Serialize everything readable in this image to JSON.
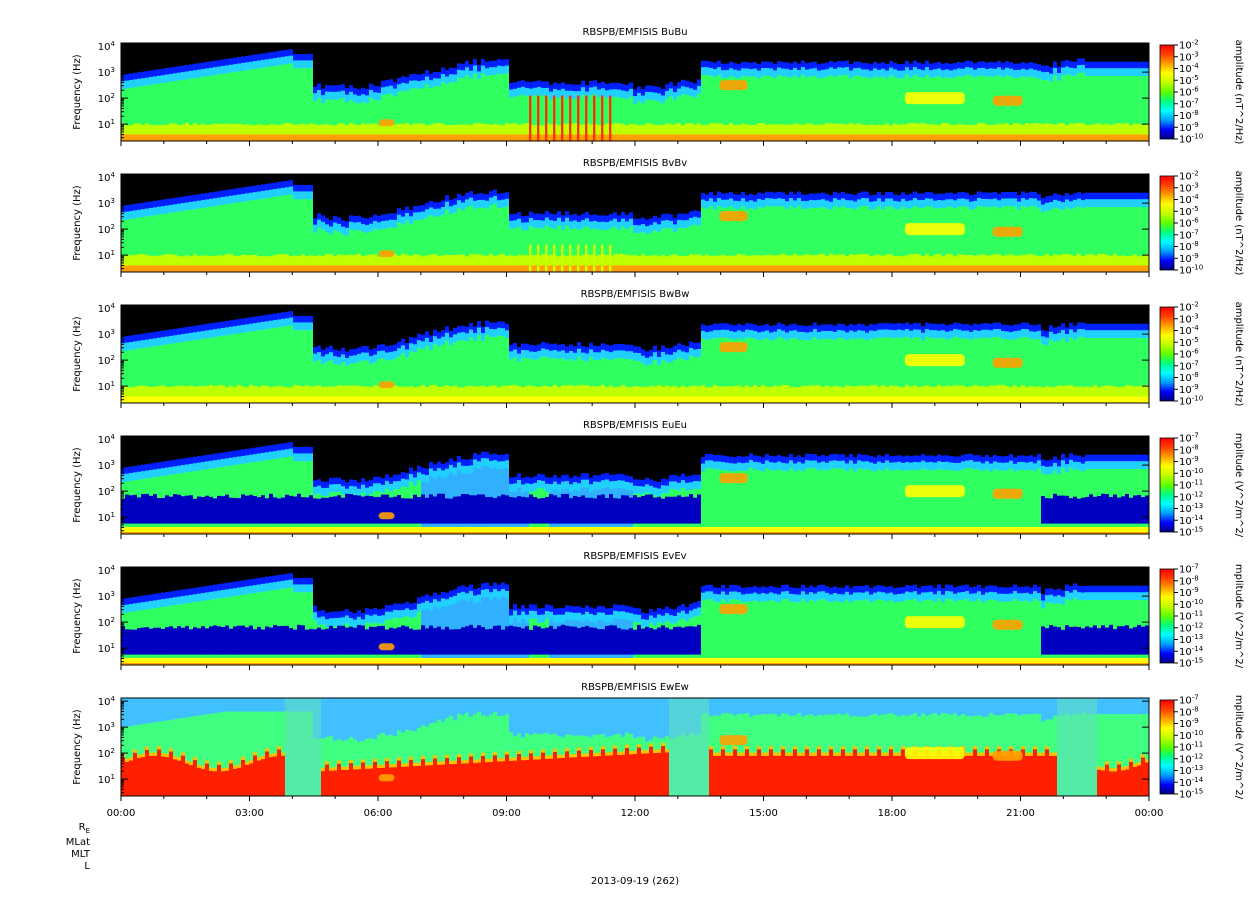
{
  "chart_data": [
    {
      "type": "heatmap",
      "title": "RBSPB/EMFISIS  BuBu",
      "ylabel": "Frequency (Hz)",
      "yscale": "log",
      "yticks": [
        "10",
        "10",
        "10",
        "10"
      ],
      "ytick_exponents": [
        "1",
        "2",
        "3",
        "4"
      ],
      "colorbar_label": "amplitude (nT^2/Hz)",
      "colorbar_ticks": [
        "10",
        "10",
        "10",
        "10",
        "10",
        "10",
        "10",
        "10",
        "10"
      ],
      "colorbar_exponents": [
        "-2",
        "-3",
        "-4",
        "-5",
        "-6",
        "-7",
        "-8",
        "-9",
        "-10"
      ],
      "zlim": [
        "1e-10",
        "1e-2"
      ],
      "style": "B"
    },
    {
      "type": "heatmap",
      "title": "RBSPB/EMFISIS  BvBv",
      "ylabel": "Frequency (Hz)",
      "yscale": "log",
      "yticks": [
        "10",
        "10",
        "10",
        "10"
      ],
      "ytick_exponents": [
        "1",
        "2",
        "3",
        "4"
      ],
      "colorbar_label": "amplitude (nT^2/Hz)",
      "colorbar_ticks": [
        "10",
        "10",
        "10",
        "10",
        "10",
        "10",
        "10",
        "10",
        "10"
      ],
      "colorbar_exponents": [
        "-2",
        "-3",
        "-4",
        "-5",
        "-6",
        "-7",
        "-8",
        "-9",
        "-10"
      ],
      "zlim": [
        "1e-10",
        "1e-2"
      ],
      "style": "B"
    },
    {
      "type": "heatmap",
      "title": "RBSPB/EMFISIS  BwBw",
      "ylabel": "Frequency (Hz)",
      "yscale": "log",
      "yticks": [
        "10",
        "10",
        "10",
        "10"
      ],
      "ytick_exponents": [
        "1",
        "2",
        "3",
        "4"
      ],
      "colorbar_label": "amplitude (nT^2/Hz)",
      "colorbar_ticks": [
        "10",
        "10",
        "10",
        "10",
        "10",
        "10",
        "10",
        "10",
        "10"
      ],
      "colorbar_exponents": [
        "-2",
        "-3",
        "-4",
        "-5",
        "-6",
        "-7",
        "-8",
        "-9",
        "-10"
      ],
      "zlim": [
        "1e-10",
        "1e-2"
      ],
      "style": "Bw"
    },
    {
      "type": "heatmap",
      "title": "RBSPB/EMFISIS  EuEu",
      "ylabel": "Frequency (Hz)",
      "yscale": "log",
      "yticks": [
        "10",
        "10",
        "10",
        "10"
      ],
      "ytick_exponents": [
        "1",
        "2",
        "3",
        "4"
      ],
      "colorbar_label": "mplitude (V^2/m^2/",
      "colorbar_ticks": [
        "10",
        "10",
        "10",
        "10",
        "10",
        "10",
        "10",
        "10",
        "10"
      ],
      "colorbar_exponents": [
        "-7",
        "-8",
        "-9",
        "-10",
        "-11",
        "-12",
        "-13",
        "-14",
        "-15"
      ],
      "zlim": [
        "1e-15",
        "1e-7"
      ],
      "style": "E"
    },
    {
      "type": "heatmap",
      "title": "RBSPB/EMFISIS  EvEv",
      "ylabel": "Frequency (Hz)",
      "yscale": "log",
      "yticks": [
        "10",
        "10",
        "10",
        "10"
      ],
      "ytick_exponents": [
        "1",
        "2",
        "3",
        "4"
      ],
      "colorbar_label": "mplitude (V^2/m^2/",
      "colorbar_ticks": [
        "10",
        "10",
        "10",
        "10",
        "10",
        "10",
        "10",
        "10",
        "10"
      ],
      "colorbar_exponents": [
        "-7",
        "-8",
        "-9",
        "-10",
        "-11",
        "-12",
        "-13",
        "-14",
        "-15"
      ],
      "zlim": [
        "1e-15",
        "1e-7"
      ],
      "style": "E"
    },
    {
      "type": "heatmap",
      "title": "RBSPB/EMFISIS  EwEw",
      "ylabel": "Frequency (Hz)",
      "yscale": "log",
      "yticks": [
        "10",
        "10",
        "10",
        "10"
      ],
      "ytick_exponents": [
        "1",
        "2",
        "3",
        "4"
      ],
      "colorbar_label": "mplitude (V^2/m^2/",
      "colorbar_ticks": [
        "10",
        "10",
        "10",
        "10",
        "10",
        "10",
        "10",
        "10",
        "10"
      ],
      "colorbar_exponents": [
        "-7",
        "-8",
        "-9",
        "-10",
        "-11",
        "-12",
        "-13",
        "-14",
        "-15"
      ],
      "zlim": [
        "1e-15",
        "1e-7"
      ],
      "style": "Ew"
    }
  ],
  "xaxis": {
    "ticks": [
      "00:00",
      "03:00",
      "06:00",
      "09:00",
      "12:00",
      "15:00",
      "18:00",
      "21:00",
      "00:00"
    ]
  },
  "footer": {
    "row_labels": [
      "R",
      "MLat",
      "MLT",
      "L"
    ],
    "re_subscript": "E",
    "date": "2013-09-19 (262)"
  },
  "colors": {
    "colormap": [
      "#000080",
      "#0000ff",
      "#00a0ff",
      "#00ffff",
      "#00ff80",
      "#60ff00",
      "#c0ff00",
      "#ffff00",
      "#ffa000",
      "#ff4000",
      "#ff0000"
    ],
    "background_fill": "#000000"
  }
}
